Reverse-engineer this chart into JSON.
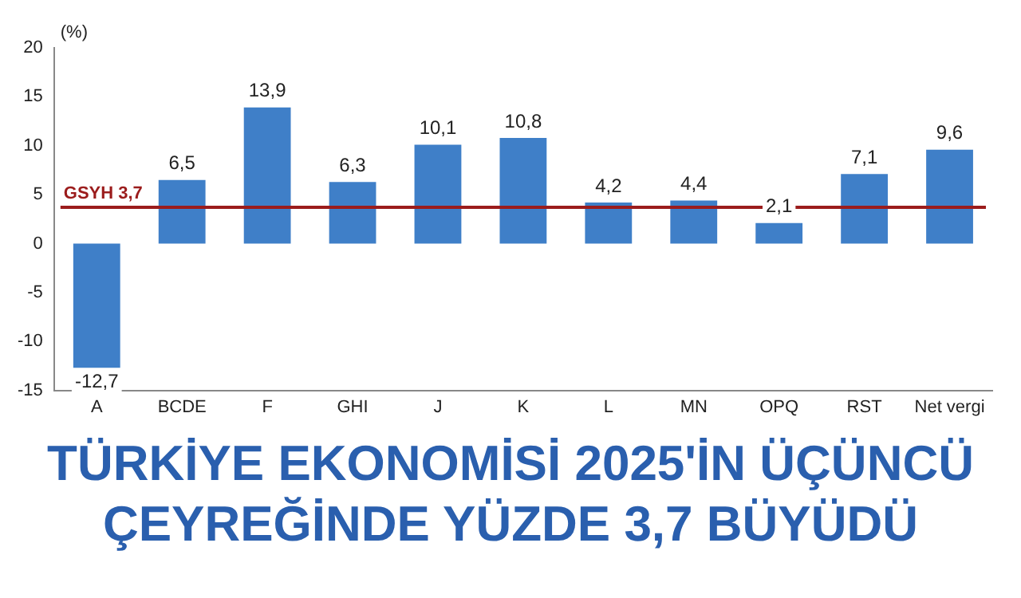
{
  "chart_data": {
    "type": "bar",
    "title": "TÜRKİYE EKONOMİSİ 2025'İN ÜÇÜNCÜ ÇEYREĞİNDE YÜZDE 3,7 BÜYÜDÜ",
    "ylabel": "(%)",
    "categories": [
      "A",
      "BCDE",
      "F",
      "GHI",
      "J",
      "K",
      "L",
      "MN",
      "OPQ",
      "RST",
      "Net vergi"
    ],
    "values": [
      -12.7,
      6.5,
      13.9,
      6.3,
      10.1,
      10.8,
      4.2,
      4.4,
      2.1,
      7.1,
      9.6
    ],
    "value_labels": [
      "-12,7",
      "6,5",
      "13,9",
      "6,3",
      "10,1",
      "10,8",
      "4,2",
      "4,4",
      "2,1",
      "7,1",
      "9,6"
    ],
    "color": "#3f7fc8",
    "ylim": [
      -15,
      20
    ],
    "yticks": [
      -15,
      -10,
      -5,
      0,
      5,
      10,
      15,
      20
    ],
    "grid": false,
    "ref_lines": [
      {
        "axis": "y",
        "value": 3.7,
        "label": "GSYH 3,7",
        "color": "#9b1c1c"
      }
    ]
  }
}
